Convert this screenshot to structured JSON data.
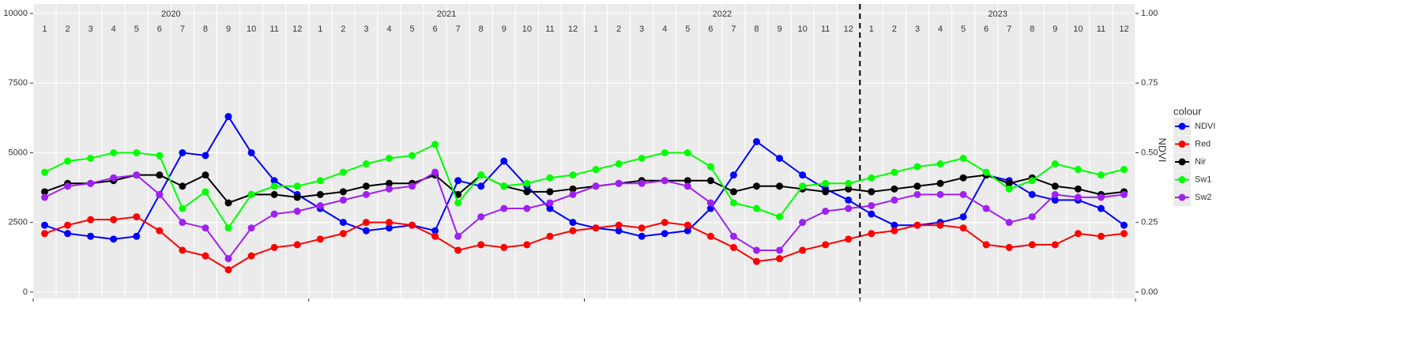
{
  "chart_data": {
    "type": "line",
    "y2label": "NDVI",
    "legend_title": "colour",
    "legend": "right",
    "grid": true,
    "years": [
      "2020",
      "2021",
      "2022",
      "2023"
    ],
    "months": [
      1,
      2,
      3,
      4,
      5,
      6,
      7,
      8,
      9,
      10,
      11,
      12
    ],
    "vline": "2023-01",
    "xlim": [
      "2020-01",
      "2024-01"
    ],
    "xticks": [
      "2020-01",
      "2021-01",
      "2022-01",
      "2023-01",
      "2024-01"
    ],
    "ylim": [
      -230,
      10340
    ],
    "yticks": [
      0,
      2500,
      5000,
      7500,
      10000
    ],
    "y2lim": [
      -0.023,
      1.034
    ],
    "y2ticks": [
      {
        "value": 0,
        "label": "0.00"
      },
      {
        "value": 0.25,
        "label": "0.25"
      },
      {
        "value": 0.5,
        "label": "0.50"
      },
      {
        "value": 0.75,
        "label": "0.75"
      },
      {
        "value": 1,
        "label": "1.00"
      }
    ],
    "x": [
      "2020-01",
      "2020-02",
      "2020-03",
      "2020-04",
      "2020-05",
      "2020-06",
      "2020-07",
      "2020-08",
      "2020-09",
      "2020-10",
      "2020-11",
      "2020-12",
      "2021-01",
      "2021-02",
      "2021-03",
      "2021-04",
      "2021-05",
      "2021-06",
      "2021-07",
      "2021-08",
      "2021-09",
      "2021-10",
      "2021-11",
      "2021-12",
      "2022-01",
      "2022-02",
      "2022-03",
      "2022-04",
      "2022-05",
      "2022-06",
      "2022-07",
      "2022-08",
      "2022-09",
      "2022-10",
      "2022-11",
      "2022-12",
      "2023-01",
      "2023-02",
      "2023-03",
      "2023-04",
      "2023-05",
      "2023-06",
      "2023-07",
      "2023-08",
      "2023-09",
      "2023-10",
      "2023-11",
      "2023-12"
    ],
    "series": [
      {
        "name": "NDVI",
        "color": "#0000ff",
        "axis": "y2",
        "values": [
          0.24,
          0.21,
          0.2,
          0.19,
          0.2,
          0.35,
          0.5,
          0.49,
          0.63,
          0.5,
          0.4,
          0.35,
          0.3,
          0.25,
          0.22,
          0.23,
          0.24,
          0.22,
          0.4,
          0.38,
          0.47,
          0.38,
          0.3,
          0.25,
          0.23,
          0.22,
          0.2,
          0.21,
          0.22,
          0.3,
          0.42,
          0.54,
          0.48,
          0.42,
          0.37,
          0.33,
          0.28,
          0.24,
          0.24,
          0.25,
          0.27,
          0.42,
          0.4,
          0.35,
          0.33,
          0.33,
          0.3,
          0.24
        ]
      },
      {
        "name": "Red",
        "color": "#ff0000",
        "values": [
          2100,
          2400,
          2600,
          2600,
          2700,
          2200,
          1500,
          1300,
          800,
          1300,
          1600,
          1700,
          1900,
          2100,
          2500,
          2500,
          2400,
          2000,
          1500,
          1700,
          1600,
          1700,
          2000,
          2200,
          2300,
          2400,
          2300,
          2500,
          2400,
          2000,
          1600,
          1100,
          1200,
          1500,
          1700,
          1900,
          2100,
          2200,
          2400,
          2400,
          2300,
          1700,
          1600,
          1700,
          1700,
          2100,
          2000,
          2100
        ]
      },
      {
        "name": "Nir",
        "color": "#000000",
        "values": [
          3600,
          3900,
          3900,
          4000,
          4200,
          4200,
          3800,
          4200,
          3200,
          3500,
          3500,
          3400,
          3500,
          3600,
          3800,
          3900,
          3900,
          4200,
          3500,
          4200,
          3800,
          3600,
          3600,
          3700,
          3800,
          3900,
          4000,
          4000,
          4000,
          4000,
          3600,
          3800,
          3800,
          3700,
          3600,
          3700,
          3600,
          3700,
          3800,
          3900,
          4100,
          4200,
          3900,
          4100,
          3800,
          3700,
          3500,
          3600
        ]
      },
      {
        "name": "Sw1",
        "color": "#00ff00",
        "values": [
          4300,
          4700,
          4800,
          5000,
          5000,
          4900,
          3000,
          3600,
          2300,
          3500,
          3800,
          3800,
          4000,
          4300,
          4600,
          4800,
          4900,
          5300,
          3200,
          4200,
          3800,
          3900,
          4100,
          4200,
          4400,
          4600,
          4800,
          5000,
          5000,
          4500,
          3200,
          3000,
          2700,
          3800,
          3900,
          3900,
          4100,
          4300,
          4500,
          4600,
          4800,
          4300,
          3700,
          4000,
          4600,
          4400,
          4200,
          4400
        ]
      },
      {
        "name": "Sw2",
        "color": "#a020f0",
        "values": [
          3400,
          3800,
          3900,
          4100,
          4200,
          3500,
          2500,
          2300,
          1200,
          2300,
          2800,
          2900,
          3100,
          3300,
          3500,
          3700,
          3800,
          4300,
          2000,
          2700,
          3000,
          3000,
          3200,
          3500,
          3800,
          3900,
          3900,
          4000,
          3800,
          3200,
          2000,
          1500,
          1500,
          2500,
          2900,
          3000,
          3100,
          3300,
          3500,
          3500,
          3500,
          3000,
          2500,
          2700,
          3500,
          3400,
          3400,
          3500
        ]
      }
    ]
  }
}
